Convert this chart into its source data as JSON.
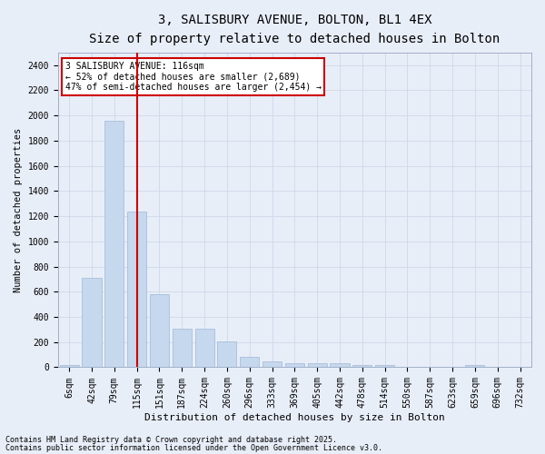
{
  "title1": "3, SALISBURY AVENUE, BOLTON, BL1 4EX",
  "title2": "Size of property relative to detached houses in Bolton",
  "xlabel": "Distribution of detached houses by size in Bolton",
  "ylabel": "Number of detached properties",
  "categories": [
    "6sqm",
    "42sqm",
    "79sqm",
    "115sqm",
    "151sqm",
    "187sqm",
    "224sqm",
    "260sqm",
    "296sqm",
    "333sqm",
    "369sqm",
    "405sqm",
    "442sqm",
    "478sqm",
    "514sqm",
    "550sqm",
    "587sqm",
    "623sqm",
    "659sqm",
    "696sqm",
    "732sqm"
  ],
  "values": [
    15,
    710,
    1960,
    1235,
    580,
    305,
    305,
    205,
    80,
    45,
    35,
    35,
    30,
    15,
    15,
    5,
    5,
    0,
    15,
    0,
    0
  ],
  "bar_color": "#c5d8ed",
  "bar_edge_color": "#a0b8d8",
  "vline_x": 3,
  "vline_color": "#cc0000",
  "annotation_line1": "3 SALISBURY AVENUE: 116sqm",
  "annotation_line2": "← 52% of detached houses are smaller (2,689)",
  "annotation_line3": "47% of semi-detached houses are larger (2,454) →",
  "annotation_box_color": "#ffffff",
  "annotation_box_edge": "#cc0000",
  "grid_color": "#d0d8e8",
  "background_color": "#e8eef8",
  "ylim": [
    0,
    2500
  ],
  "yticks": [
    0,
    200,
    400,
    600,
    800,
    1000,
    1200,
    1400,
    1600,
    1800,
    2000,
    2200,
    2400
  ],
  "footnote1": "Contains HM Land Registry data © Crown copyright and database right 2025.",
  "footnote2": "Contains public sector information licensed under the Open Government Licence v3.0.",
  "title1_fontsize": 10,
  "title2_fontsize": 8.5,
  "xlabel_fontsize": 8,
  "ylabel_fontsize": 7.5,
  "tick_fontsize": 7,
  "annot_fontsize": 7,
  "footnote_fontsize": 6
}
